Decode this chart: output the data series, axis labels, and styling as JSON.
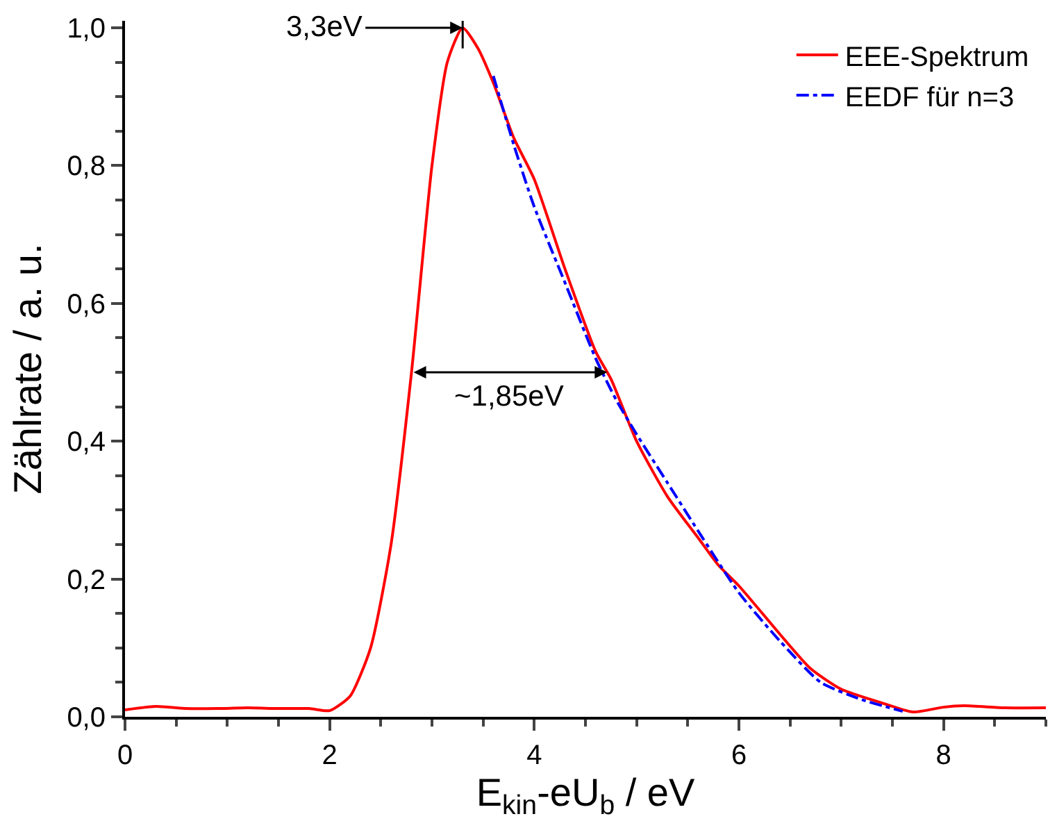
{
  "chart_data": {
    "type": "line",
    "xlabel": "E$_{kin}$-eU$_{b}$ / eV",
    "ylabel": "Zählrate / a. u.",
    "xlim": [
      0,
      9
    ],
    "ylim": [
      0,
      1.01
    ],
    "xticks": [
      0,
      2,
      4,
      6,
      8
    ],
    "yticks": [
      {
        "value": 0,
        "label": "0,0"
      },
      {
        "value": 0.2,
        "label": "0,2"
      },
      {
        "value": 0.4,
        "label": "0,4"
      },
      {
        "value": 0.6,
        "label": "0,6"
      },
      {
        "value": 0.8,
        "label": "0,8"
      },
      {
        "value": 1.0,
        "label": "1,0"
      }
    ],
    "legend": "top right",
    "series": [
      {
        "name": "EEE-Spektrum",
        "color": "#ff0000",
        "line_style": "solid",
        "x": [
          0,
          0.3,
          0.6,
          0.9,
          1.2,
          1.5,
          1.8,
          2.0,
          2.2,
          2.4,
          2.6,
          2.8,
          3.0,
          3.15,
          3.3,
          3.45,
          3.6,
          3.8,
          4.0,
          4.3,
          4.6,
          4.75,
          5.0,
          5.3,
          5.6,
          5.8,
          6.0,
          6.4,
          6.7,
          7.0,
          7.4,
          7.7,
          8.0,
          8.2,
          8.6,
          9.0
        ],
        "values": [
          0.01,
          0.015,
          0.012,
          0.012,
          0.013,
          0.012,
          0.012,
          0.009,
          0.03,
          0.1,
          0.25,
          0.5,
          0.8,
          0.95,
          1.0,
          0.97,
          0.92,
          0.84,
          0.78,
          0.65,
          0.53,
          0.49,
          0.4,
          0.32,
          0.26,
          0.22,
          0.19,
          0.12,
          0.07,
          0.04,
          0.02,
          0.007,
          0.014,
          0.016,
          0.013,
          0.013
        ]
      },
      {
        "name": "EEDF für n=3",
        "color": "#0000ff",
        "line_style": "dashdot",
        "x": [
          3.6,
          3.8,
          4.0,
          4.3,
          4.6,
          4.8,
          5.0,
          5.3,
          5.6,
          6.0,
          6.4,
          6.8,
          7.2,
          7.6
        ],
        "values": [
          0.93,
          0.83,
          0.74,
          0.63,
          0.52,
          0.46,
          0.41,
          0.34,
          0.27,
          0.18,
          0.11,
          0.05,
          0.025,
          0.008
        ]
      }
    ],
    "annotations": [
      {
        "text": "3,3eV",
        "x": 3.3,
        "y": 1.0
      },
      "~1,85eV"
    ]
  }
}
